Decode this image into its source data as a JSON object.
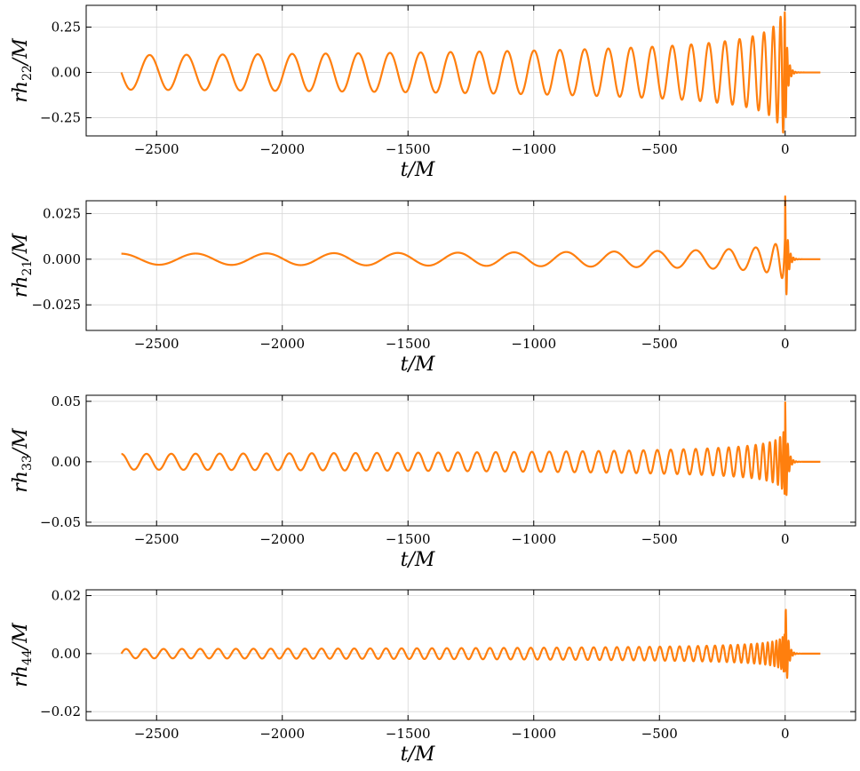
{
  "chart_data": [
    {
      "type": "line",
      "mode": "22",
      "xlabel": "t/M",
      "ylabel": "rh22/M",
      "ylabel_main": "rh",
      "ylabel_sub": "22",
      "ylabel_tail": "/M",
      "xlim": [
        -2780,
        280
      ],
      "ylim": [
        -0.35,
        0.37
      ],
      "xticks": [
        -2500,
        -2000,
        -1500,
        -1000,
        -500,
        0
      ],
      "xtick_labels": [
        "−2500",
        "−2000",
        "−1500",
        "−1000",
        "−500",
        "0"
      ],
      "yticks": [
        -0.25,
        0.0,
        0.25
      ],
      "ytick_labels": [
        "−0.25",
        "0.00",
        "0.25"
      ],
      "grid": true,
      "color": "#ff7f0e",
      "series": [
        {
          "t_start": -2640,
          "t_end": 140,
          "amp_early": 0.095,
          "amp_peak": 0.335,
          "cycles": 28,
          "phase0": 1.5708,
          "ringdown_cycles": 1.5
        }
      ]
    },
    {
      "type": "line",
      "mode": "21",
      "xlabel": "t/M",
      "ylabel": "rh21/M",
      "ylabel_main": "rh",
      "ylabel_sub": "21",
      "ylabel_tail": "/M",
      "xlim": [
        -2780,
        280
      ],
      "ylim": [
        -0.039,
        0.032
      ],
      "xticks": [
        -2500,
        -2000,
        -1500,
        -1000,
        -500,
        0
      ],
      "xtick_labels": [
        "−2500",
        "−2000",
        "−1500",
        "−1000",
        "−500",
        "0"
      ],
      "yticks": [
        -0.025,
        0.0,
        0.025
      ],
      "ytick_labels": [
        "−0.025",
        "0.000",
        "0.025"
      ],
      "grid": true,
      "color": "#ff7f0e",
      "series": [
        {
          "t_start": -2640,
          "t_end": 140,
          "amp_early": 0.003,
          "amp_peak": 0.035,
          "cycles": 14,
          "phase0": 0,
          "ringdown_cycles": 1.5
        }
      ]
    },
    {
      "type": "line",
      "mode": "33",
      "xlabel": "t/M",
      "ylabel": "rh33/M",
      "ylabel_main": "rh",
      "ylabel_sub": "33",
      "ylabel_tail": "/M",
      "xlim": [
        -2780,
        280
      ],
      "ylim": [
        -0.053,
        0.055
      ],
      "xticks": [
        -2500,
        -2000,
        -1500,
        -1000,
        -500,
        0
      ],
      "xtick_labels": [
        "−2500",
        "−2000",
        "−1500",
        "−1000",
        "−500",
        "0"
      ],
      "yticks": [
        -0.05,
        0.0,
        0.05
      ],
      "ytick_labels": [
        "−0.05",
        "0.00",
        "0.05"
      ],
      "grid": true,
      "color": "#ff7f0e",
      "series": [
        {
          "t_start": -2640,
          "t_end": 140,
          "amp_early": 0.0065,
          "amp_peak": 0.05,
          "cycles": 42,
          "phase0": 0,
          "ringdown_cycles": 2
        }
      ]
    },
    {
      "type": "line",
      "mode": "44",
      "xlabel": "t/M",
      "ylabel": "rh44/M",
      "ylabel_main": "rh",
      "ylabel_sub": "44",
      "ylabel_tail": "/M",
      "xlim": [
        -2780,
        280
      ],
      "ylim": [
        -0.023,
        0.022
      ],
      "xticks": [
        -2500,
        -2000,
        -1500,
        -1000,
        -500,
        0
      ],
      "xtick_labels": [
        "−2500",
        "−2000",
        "−1500",
        "−1000",
        "−500",
        "0"
      ],
      "yticks": [
        -0.02,
        0.0,
        0.02
      ],
      "ytick_labels": [
        "−0.02",
        "0.00",
        "0.02"
      ],
      "grid": true,
      "color": "#ff7f0e",
      "series": [
        {
          "t_start": -2640,
          "t_end": 140,
          "amp_early": 0.0016,
          "amp_peak": 0.0205,
          "cycles": 56,
          "phase0": -1.5708,
          "ringdown_cycles": 2.5
        }
      ]
    }
  ]
}
